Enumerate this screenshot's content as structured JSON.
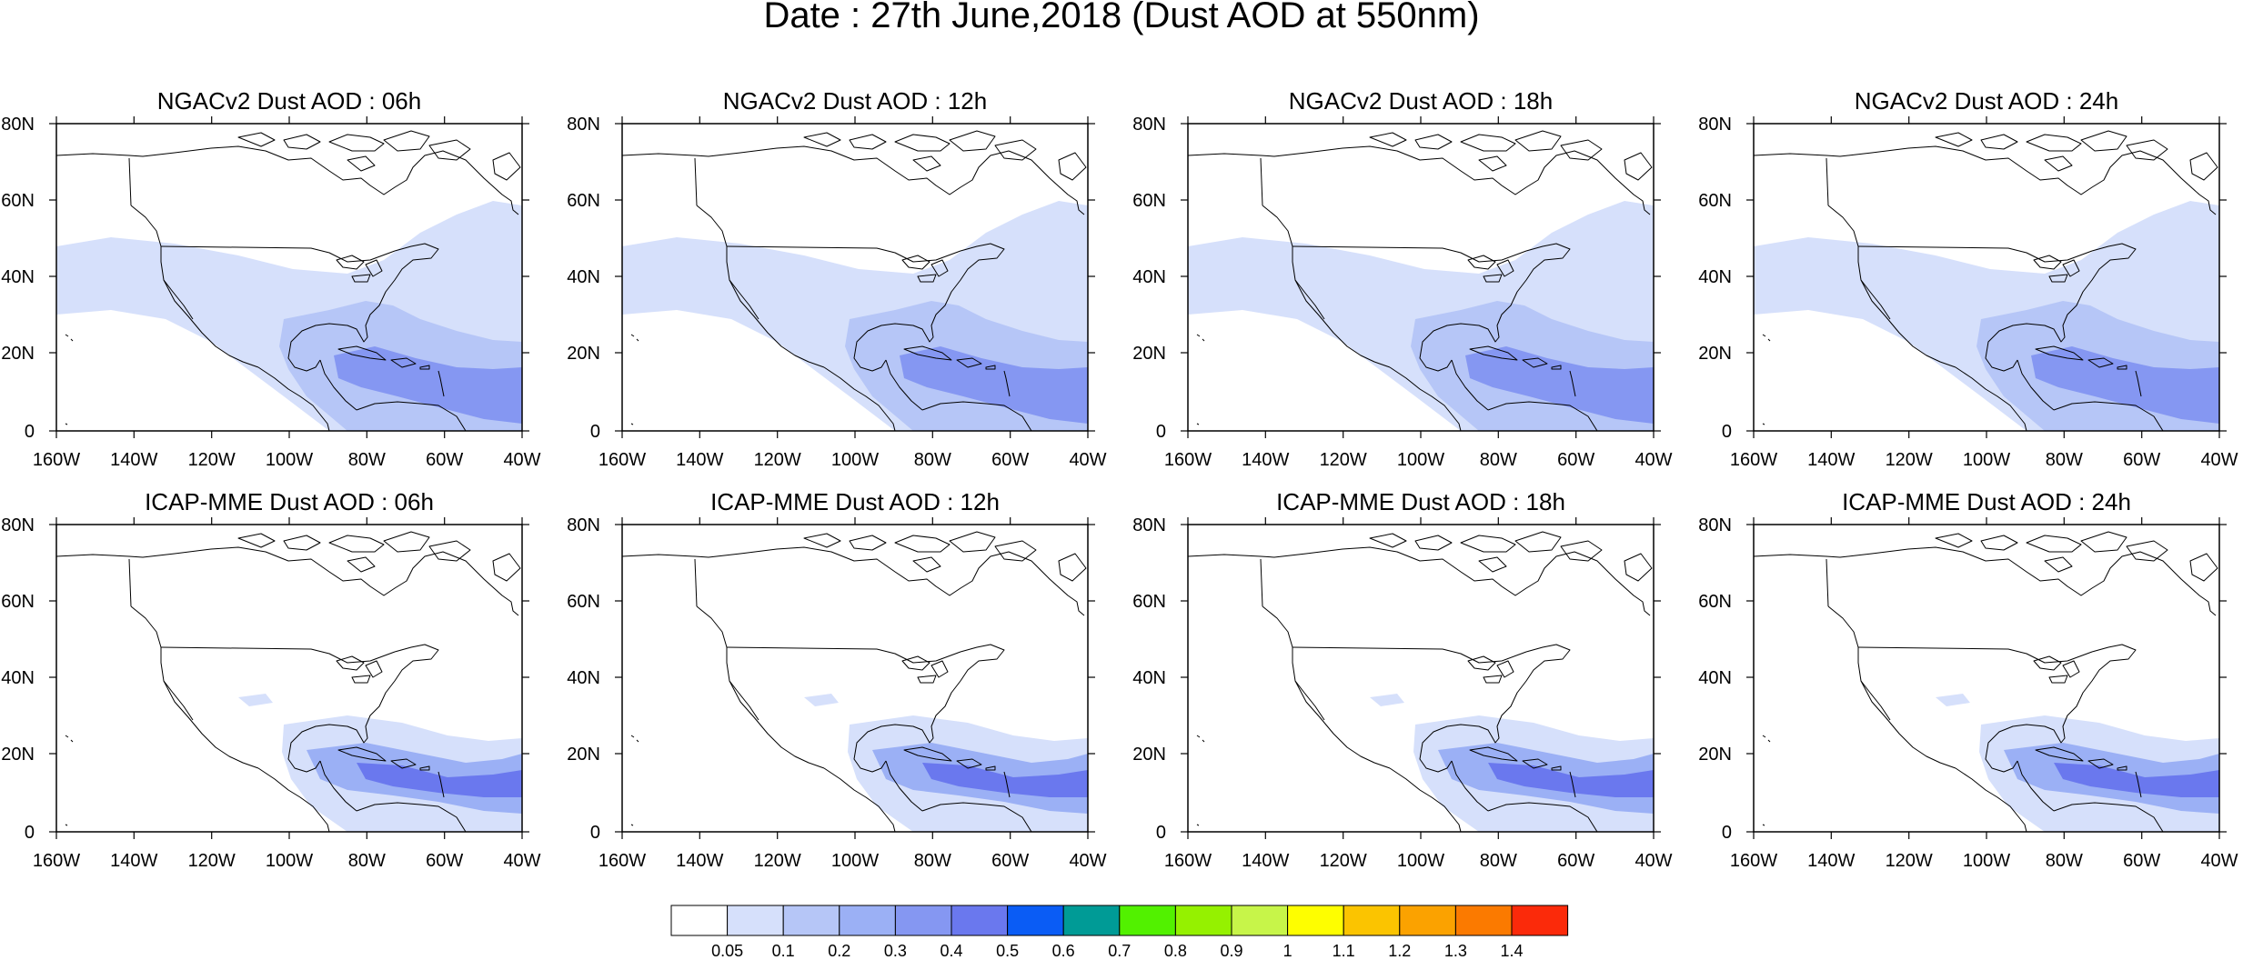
{
  "title": "Date : 27th June,2018 (Dust AOD at 550nm)",
  "panels": [
    {
      "title": "NGACv2 Dust AOD : 06h",
      "model": "NGACv2",
      "hour": "06h"
    },
    {
      "title": "NGACv2 Dust AOD : 12h",
      "model": "NGACv2",
      "hour": "12h"
    },
    {
      "title": "NGACv2 Dust AOD : 18h",
      "model": "NGACv2",
      "hour": "18h"
    },
    {
      "title": "NGACv2 Dust AOD : 24h",
      "model": "NGACv2",
      "hour": "24h"
    },
    {
      "title": "ICAP-MME Dust AOD : 06h",
      "model": "ICAP-MME",
      "hour": "06h"
    },
    {
      "title": "ICAP-MME Dust AOD : 12h",
      "model": "ICAP-MME",
      "hour": "12h"
    },
    {
      "title": "ICAP-MME Dust AOD : 18h",
      "model": "ICAP-MME",
      "hour": "18h"
    },
    {
      "title": "ICAP-MME Dust AOD : 24h",
      "model": "ICAP-MME",
      "hour": "24h"
    }
  ],
  "lat_labels": [
    "80N",
    "60N",
    "40N",
    "20N",
    "0"
  ],
  "lon_labels": [
    "160W",
    "140W",
    "120W",
    "100W",
    "80W",
    "60W",
    "40W"
  ],
  "colorbar": {
    "colors": [
      "#ffffff",
      "#d6e0fb",
      "#b6c6f7",
      "#9bb0f5",
      "#8597f2",
      "#6a78ee",
      "#0a5cf5",
      "#009b96",
      "#52f100",
      "#95f100",
      "#c7f549",
      "#fefe00",
      "#fbc400",
      "#fba200",
      "#fb7a00",
      "#fb2a0a"
    ],
    "labels": [
      "0.05",
      "0.1",
      "0.2",
      "0.3",
      "0.4",
      "0.5",
      "0.6",
      "0.7",
      "0.8",
      "0.9",
      "1",
      "1.1",
      "1.2",
      "1.3",
      "1.4"
    ]
  }
}
